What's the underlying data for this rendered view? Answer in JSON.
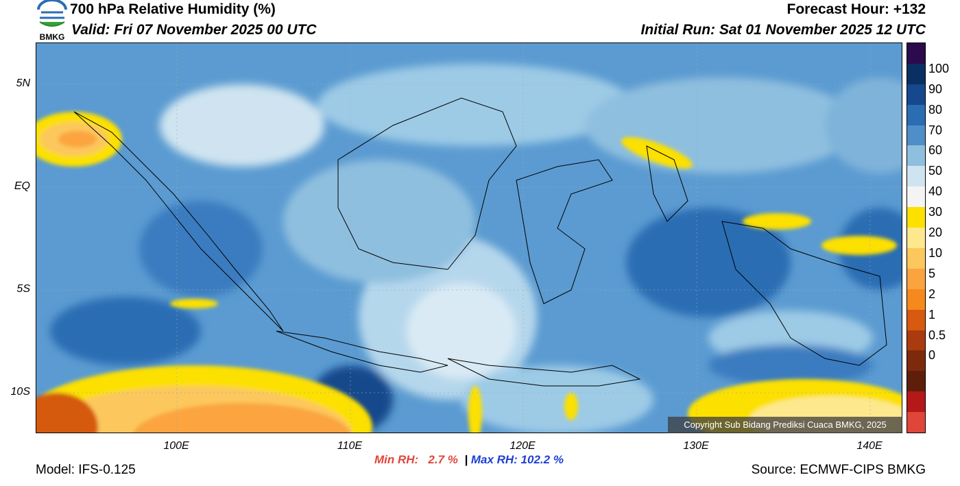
{
  "header": {
    "title": "700 hPa Relative Humidity (%)",
    "valid": "Valid: Fri 07 November 2025 00 UTC",
    "forecast_hour": "Forecast Hour: +132",
    "initial_run": "Initial Run: Sat 01 November 2025 12 UTC"
  },
  "logo": {
    "text": "BMKG"
  },
  "axes": {
    "lat_labels": [
      "5N",
      "EQ",
      "5S",
      "10S"
    ],
    "lon_labels": [
      "100E",
      "110E",
      "120E",
      "130E",
      "140E"
    ]
  },
  "colorbar": {
    "labels": [
      "100",
      "90",
      "80",
      "70",
      "60",
      "50",
      "40",
      "30",
      "20",
      "10",
      "5",
      "2",
      "1",
      "0.5",
      "0"
    ],
    "colors": [
      "#2c0a4e",
      "#0a2f63",
      "#15488c",
      "#2a6db3",
      "#4f8ec8",
      "#8fbfdf",
      "#cfe4f0",
      "#f4f4f4",
      "#fce000",
      "#fde88e",
      "#fcc75c",
      "#fba43f",
      "#f5891d",
      "#d65a10",
      "#aa3b0e",
      "#7d2a0c",
      "#5e1f0a",
      "#b41818",
      "#e0453a"
    ]
  },
  "stats": {
    "min_label": "Min RH:",
    "min_value": "2.7 %",
    "separator": "|",
    "max_label": "Max RH: 102.2 %"
  },
  "footer": {
    "model": "Model: IFS-0.125",
    "source": "Source: ECMWF-CIPS BMKG",
    "copyright": "Copyright Sub Bidang Prediksi Cuaca BMKG, 2025"
  }
}
